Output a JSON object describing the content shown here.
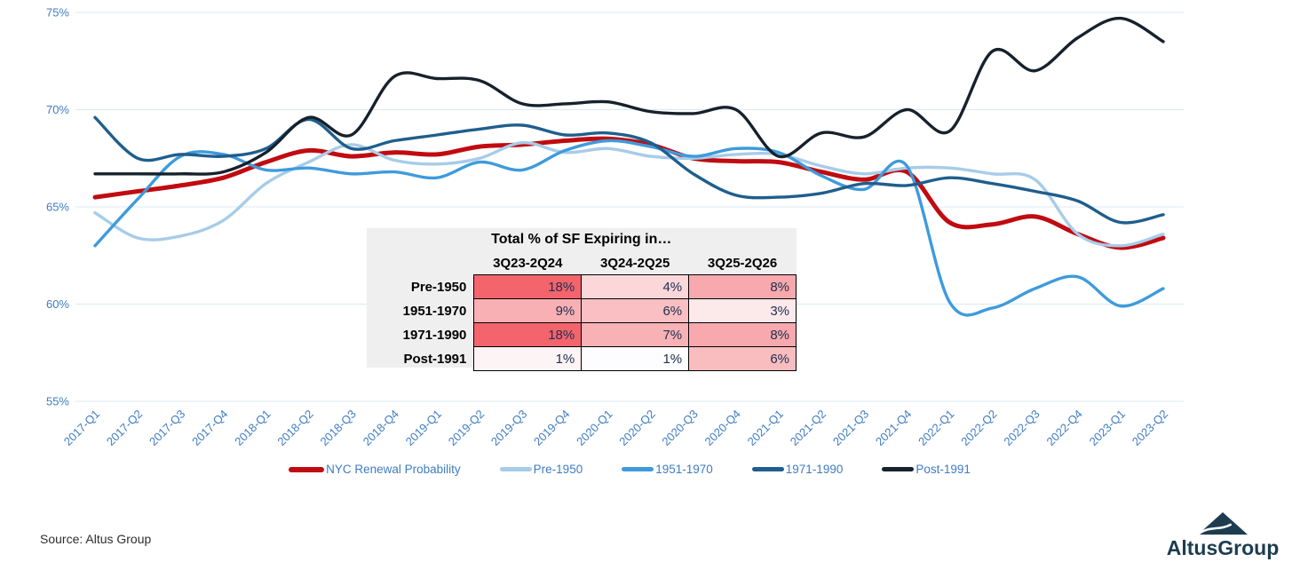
{
  "chart_data": {
    "type": "line",
    "title": "",
    "x_labels": [
      "2017-Q1",
      "2017-Q2",
      "2017-Q3",
      "2017-Q4",
      "2018-Q1",
      "2018-Q2",
      "2018-Q3",
      "2018-Q4",
      "2019-Q1",
      "2019-Q2",
      "2019-Q3",
      "2019-Q4",
      "2020-Q1",
      "2020-Q2",
      "2020-Q3",
      "2020-Q4",
      "2021-Q1",
      "2021-Q2",
      "2021-Q3",
      "2021-Q4",
      "2022-Q1",
      "2022-Q2",
      "2022-Q3",
      "2022-Q4",
      "2023-Q1",
      "2023-Q2"
    ],
    "y_tick_labels": [
      "75%",
      "70%",
      "65%",
      "60%",
      "55%"
    ],
    "y_tick_values": [
      75,
      70,
      65,
      60,
      55
    ],
    "ylim": [
      55,
      75
    ],
    "grid": true,
    "legend_position": "bottom",
    "series": [
      {
        "name": "NYC Renewal Probability",
        "color": "#c00b10",
        "width": 5,
        "values": [
          65.5,
          65.8,
          66.1,
          66.5,
          67.3,
          67.9,
          67.6,
          67.8,
          67.7,
          68.1,
          68.2,
          68.4,
          68.5,
          68.2,
          67.5,
          67.35,
          67.3,
          66.8,
          66.4,
          66.8,
          64.2,
          64.1,
          64.5,
          63.6,
          62.9,
          63.4
        ]
      },
      {
        "name": "Pre-1950",
        "color": "#a7cce8",
        "width": 3.4,
        "values": [
          64.7,
          63.4,
          63.5,
          64.3,
          66.2,
          67.3,
          68.2,
          67.4,
          67.2,
          67.5,
          68.3,
          67.8,
          68.0,
          67.6,
          67.5,
          67.7,
          67.7,
          67.1,
          66.7,
          67.0,
          67.0,
          66.7,
          66.4,
          63.6,
          63.0,
          63.6
        ]
      },
      {
        "name": "1951-1970",
        "color": "#3e9bdb",
        "width": 3.4,
        "values": [
          63.0,
          65.4,
          67.6,
          67.7,
          66.9,
          67.0,
          66.7,
          66.8,
          66.5,
          67.3,
          66.9,
          67.9,
          68.4,
          68.1,
          67.6,
          68.0,
          67.8,
          66.6,
          65.9,
          67.1,
          60.1,
          59.8,
          60.8,
          61.4,
          59.9,
          60.8
        ]
      },
      {
        "name": "1971-1990",
        "color": "#1f5e8d",
        "width": 3.4,
        "values": [
          69.6,
          67.5,
          67.7,
          67.6,
          68.0,
          69.5,
          68.0,
          68.4,
          68.7,
          69.0,
          69.2,
          68.7,
          68.8,
          68.3,
          66.7,
          65.6,
          65.5,
          65.7,
          66.2,
          66.1,
          66.5,
          66.2,
          65.8,
          65.3,
          64.2,
          64.6
        ]
      },
      {
        "name": "Post-1991",
        "color": "#16212c",
        "width": 3.4,
        "values": [
          66.7,
          66.7,
          66.7,
          66.8,
          67.8,
          69.6,
          68.7,
          71.7,
          71.6,
          71.5,
          70.3,
          70.3,
          70.4,
          69.9,
          69.8,
          70.0,
          67.6,
          68.8,
          68.6,
          70.0,
          68.9,
          73.0,
          72.0,
          73.7,
          74.7,
          73.5
        ]
      }
    ],
    "axis_text_color": "#3f7cc1",
    "grid_color": "#dbe8f4"
  },
  "table": {
    "title": "Total % of SF Expiring in…",
    "col_headers": [
      "3Q23-2Q24",
      "3Q24-2Q25",
      "3Q25-2Q26"
    ],
    "rows": [
      {
        "label": "Pre-1950",
        "cells": [
          {
            "value": "18%",
            "bg": "#f4646c"
          },
          {
            "value": "4%",
            "bg": "#fbd7d9"
          },
          {
            "value": "8%",
            "bg": "#f7a9ad"
          }
        ]
      },
      {
        "label": "1951-1970",
        "cells": [
          {
            "value": "9%",
            "bg": "#f8b0b4"
          },
          {
            "value": "6%",
            "bg": "#f9bfc2"
          },
          {
            "value": "3%",
            "bg": "#fce9ea"
          }
        ]
      },
      {
        "label": "1971-1990",
        "cells": [
          {
            "value": "18%",
            "bg": "#f4646c"
          },
          {
            "value": "7%",
            "bg": "#f8b2b5"
          },
          {
            "value": "8%",
            "bg": "#f7a9ad"
          }
        ]
      },
      {
        "label": "Post-1991",
        "cells": [
          {
            "value": "1%",
            "bg": "#fdf4f5"
          },
          {
            "value": "1%",
            "bg": "#fdfcfe"
          },
          {
            "value": "6%",
            "bg": "#f9bcbf"
          }
        ]
      }
    ]
  },
  "legend": {
    "items": [
      "NYC Renewal Probability",
      "Pre-1950",
      "1951-1970",
      "1971-1990",
      "Post-1991"
    ]
  },
  "footer": {
    "source": "Source: Altus Group",
    "logo_text": "AltusGroup",
    "logo_color": "#1d3c50"
  }
}
